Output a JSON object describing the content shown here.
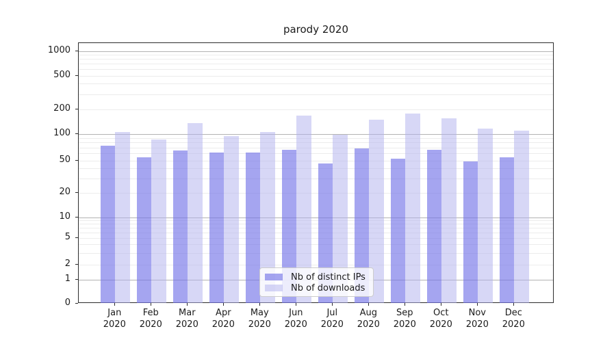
{
  "chart_data": {
    "type": "bar",
    "title": "parody 2020",
    "categories": [
      "Jan",
      "Feb",
      "Mar",
      "Apr",
      "May",
      "Jun",
      "Jul",
      "Aug",
      "Sep",
      "Oct",
      "Nov",
      "Dec"
    ],
    "category_year": "2020",
    "series": [
      {
        "name": "Nb of distinct IPs",
        "color": "rgba(117,117,232,0.65)",
        "solid_color": "#a5a5f0",
        "values": [
          73,
          54,
          65,
          61,
          61,
          66,
          46,
          68,
          52,
          66,
          49,
          54
        ]
      },
      {
        "name": "Nb of downloads",
        "color": "rgba(175,175,238,0.5)",
        "solid_color": "#d7d7f6",
        "values": [
          105,
          87,
          135,
          95,
          105,
          168,
          98,
          150,
          178,
          154,
          117,
          111
        ]
      }
    ],
    "xlabel": "",
    "ylabel": "",
    "yscale": "symlog",
    "yticks": [
      0,
      1,
      2,
      5,
      10,
      20,
      50,
      100,
      200,
      500,
      1000
    ],
    "ylim": [
      0,
      1250
    ],
    "grid": true,
    "legend_position": "lower center"
  },
  "colors": {
    "major_grid": "#b2b2b2",
    "minor_grid": "#ececec",
    "axis": "#2b2b2b",
    "text": "#1a1a1a",
    "background": "#ffffff"
  }
}
